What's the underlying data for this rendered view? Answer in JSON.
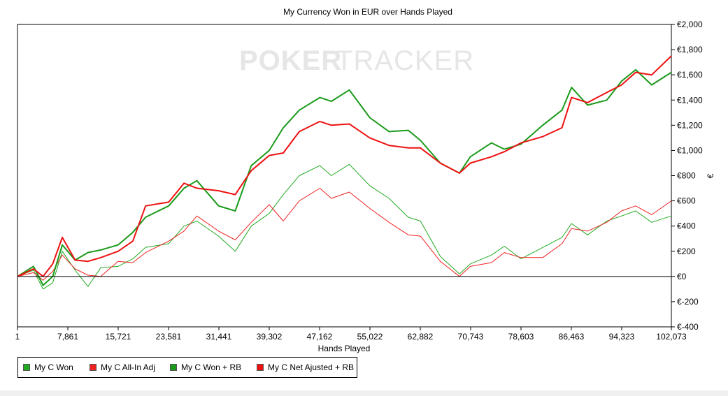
{
  "colors": {
    "green": "#1a9a1a",
    "red": "#ee1111",
    "thin_green": "#22aa22",
    "thin_red": "#ee2222"
  },
  "watermark": {
    "left": "POKER",
    "right": "TRACKER"
  },
  "chart_data": {
    "type": "line",
    "title": "My Currency Won in EUR over Hands Played",
    "xlabel": "Hands Played",
    "ylabel": "€",
    "xlim": [
      1,
      102073
    ],
    "ylim": [
      -400,
      2000
    ],
    "x_ticks": [
      1,
      7861,
      15721,
      23581,
      31441,
      39302,
      47162,
      55022,
      62882,
      70743,
      78603,
      86463,
      94323,
      102073
    ],
    "x_tick_labels": [
      "1",
      "7,861",
      "15,721",
      "23,581",
      "31,441",
      "39,302",
      "47,162",
      "55,022",
      "62,882",
      "70,743",
      "78,603",
      "86,463",
      "94,323",
      "102,073"
    ],
    "y_ticks": [
      -400,
      -200,
      0,
      200,
      400,
      600,
      800,
      1000,
      1200,
      1400,
      1600,
      1800,
      2000
    ],
    "y_tick_labels": [
      "€-400",
      "€-200",
      "€0",
      "€200",
      "€400",
      "€600",
      "€800",
      "€1,000",
      "€1,200",
      "€1,400",
      "€1,600",
      "€1,800",
      "€2,000"
    ],
    "grid": false,
    "legend_position": "bottom-left",
    "series": [
      {
        "name": "My C Won",
        "color": "#22aa22",
        "line_width": 1,
        "x": [
          1,
          2500,
          4000,
          5500,
          7000,
          9000,
          11000,
          13000,
          15700,
          18000,
          20000,
          23600,
          26000,
          28000,
          31400,
          34000,
          36500,
          39300,
          41500,
          44000,
          47200,
          49000,
          51800,
          55000,
          58000,
          61000,
          62900,
          66000,
          69000,
          70700,
          74000,
          76000,
          78600,
          82000,
          85000,
          86500,
          89000,
          92000,
          94300,
          96500,
          99000,
          102073
        ],
        "y": [
          0,
          50,
          -100,
          -50,
          200,
          50,
          -80,
          70,
          80,
          140,
          230,
          260,
          400,
          440,
          320,
          200,
          400,
          500,
          650,
          800,
          880,
          800,
          890,
          720,
          620,
          470,
          440,
          160,
          20,
          100,
          170,
          240,
          140,
          230,
          310,
          420,
          330,
          440,
          480,
          520,
          430,
          480
        ]
      },
      {
        "name": "My C All-In Adj",
        "color": "#ee2222",
        "line_width": 1,
        "x": [
          1,
          2500,
          4000,
          5500,
          7000,
          9000,
          11000,
          13000,
          15700,
          18000,
          20000,
          23600,
          26000,
          28000,
          31400,
          34000,
          36500,
          39300,
          41500,
          44000,
          47200,
          49000,
          51800,
          55000,
          58000,
          61000,
          62900,
          66000,
          69000,
          70700,
          74000,
          76000,
          78600,
          82000,
          85000,
          86500,
          89000,
          92000,
          94300,
          96500,
          99000,
          102073
        ],
        "y": [
          0,
          30,
          -30,
          40,
          170,
          60,
          10,
          0,
          120,
          110,
          190,
          280,
          360,
          480,
          360,
          290,
          430,
          570,
          440,
          600,
          700,
          620,
          670,
          540,
          430,
          330,
          320,
          120,
          0,
          80,
          110,
          190,
          150,
          150,
          260,
          380,
          360,
          430,
          520,
          560,
          490,
          600
        ]
      },
      {
        "name": "My C Won + RB",
        "color": "#1a9a1a",
        "line_width": 2,
        "x": [
          1,
          2500,
          4000,
          5500,
          7000,
          9000,
          11000,
          13000,
          15700,
          18000,
          20000,
          23600,
          26000,
          28000,
          31400,
          34000,
          36500,
          39300,
          41500,
          44000,
          47200,
          49000,
          51800,
          55000,
          58000,
          61000,
          62900,
          66000,
          69000,
          70700,
          74000,
          76000,
          78600,
          82000,
          85000,
          86500,
          89000,
          92000,
          94300,
          96500,
          99000,
          102073
        ],
        "y": [
          0,
          80,
          -70,
          0,
          250,
          130,
          190,
          210,
          250,
          350,
          470,
          560,
          700,
          760,
          560,
          520,
          880,
          1000,
          1180,
          1320,
          1420,
          1390,
          1480,
          1260,
          1150,
          1160,
          1080,
          900,
          820,
          950,
          1060,
          1010,
          1050,
          1200,
          1320,
          1500,
          1360,
          1400,
          1550,
          1640,
          1520,
          1620
        ]
      },
      {
        "name": "My C Net Ajusted + RB",
        "color": "#ee1111",
        "line_width": 2,
        "x": [
          1,
          2500,
          4000,
          5500,
          7000,
          9000,
          11000,
          13000,
          15700,
          18000,
          20000,
          23600,
          26000,
          28000,
          31400,
          34000,
          36500,
          39300,
          41500,
          44000,
          47200,
          49000,
          51800,
          55000,
          58000,
          61000,
          62900,
          66000,
          69000,
          70700,
          74000,
          76000,
          78600,
          82000,
          85000,
          86500,
          89000,
          92000,
          94300,
          96500,
          99000,
          102073
        ],
        "y": [
          0,
          60,
          0,
          100,
          310,
          130,
          120,
          150,
          200,
          280,
          560,
          590,
          740,
          700,
          680,
          650,
          840,
          960,
          980,
          1150,
          1230,
          1200,
          1210,
          1100,
          1040,
          1020,
          1020,
          900,
          820,
          900,
          950,
          990,
          1060,
          1110,
          1180,
          1420,
          1380,
          1460,
          1520,
          1620,
          1600,
          1750
        ]
      }
    ]
  }
}
